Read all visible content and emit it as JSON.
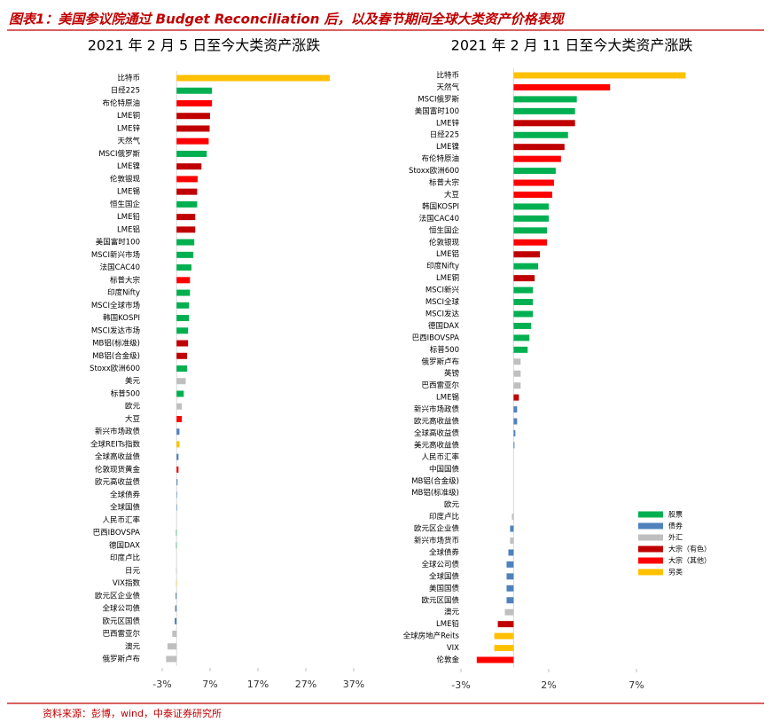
{
  "header": {
    "title": "图表1：美国参议院通过 Budget Reconciliation 后，以及春节期间全球大类资产价格表现"
  },
  "source": "资料来源：彭博，wind，中泰证券研究所",
  "legend": [
    {
      "name": "股票",
      "color": "#00b050"
    },
    {
      "name": "债券",
      "color": "#4f81bd"
    },
    {
      "name": "外汇",
      "color": "#bfbfbf"
    },
    {
      "name": "大宗（有色）",
      "color": "#c00000"
    },
    {
      "name": "大宗（其他）",
      "color": "#ff0000"
    },
    {
      "name": "另类",
      "color": "#ffc000"
    }
  ],
  "chart_data": [
    {
      "type": "barh",
      "title": "2021 年 2 月 5 日至今大类资产涨跌",
      "categories": [
        "比特币",
        "日经225",
        "布伦特原油",
        "LME铜",
        "LME锌",
        "天然气",
        "MSCI俄罗斯",
        "LME镍",
        "伦敦银现",
        "LME锡",
        "恒生国企",
        "LME铅",
        "LME铝",
        "美国富时100",
        "MSCI新兴市场",
        "法国CAC40",
        "标普大宗",
        "印度Nifty",
        "MSCI全球市场",
        "韩国KOSPI",
        "MSCI发达市场",
        "MB铝(标准级)",
        "MB铝(合金级)",
        "Stoxx欧洲600",
        "美元",
        "标普500",
        "欧元",
        "大豆",
        "新兴市场政债",
        "全球REITs指数",
        "全球高收益债",
        "伦敦现货黄金",
        "欧元高收益债",
        "全球债券",
        "全球国债",
        "人民币汇率",
        "巴西IBOVSPA",
        "德国DAX",
        "印度卢比",
        "日元",
        "VIX指数",
        "欧元区企业债",
        "全球公司债",
        "欧元区国债",
        "巴西雷亚尔",
        "澳元",
        "俄罗斯卢布"
      ],
      "values": [
        32.0,
        7.4,
        7.4,
        7.0,
        6.9,
        6.7,
        6.3,
        5.2,
        4.4,
        4.3,
        4.3,
        3.9,
        3.9,
        3.7,
        3.5,
        3.1,
        2.8,
        2.8,
        2.6,
        2.6,
        2.4,
        2.4,
        2.2,
        2.2,
        1.9,
        1.5,
        1.1,
        1.1,
        0.6,
        0.6,
        0.4,
        0.4,
        0.2,
        0.1,
        0.1,
        0,
        -0.1,
        -0.1,
        0,
        -0.1,
        -0.1,
        -0.2,
        -0.3,
        -0.4,
        -0.9,
        -1.9,
        -2.2
      ],
      "colors": [
        "#ffc000",
        "#00b050",
        "#ff0000",
        "#c00000",
        "#c00000",
        "#ff0000",
        "#00b050",
        "#c00000",
        "#ff0000",
        "#c00000",
        "#00b050",
        "#c00000",
        "#c00000",
        "#00b050",
        "#00b050",
        "#00b050",
        "#ff0000",
        "#00b050",
        "#00b050",
        "#00b050",
        "#00b050",
        "#c00000",
        "#c00000",
        "#00b050",
        "#bfbfbf",
        "#00b050",
        "#bfbfbf",
        "#ff0000",
        "#4f81bd",
        "#ffc000",
        "#4f81bd",
        "#ff0000",
        "#4f81bd",
        "#4f81bd",
        "#4f81bd",
        "#bfbfbf",
        "#00b050",
        "#00b050",
        "#bfbfbf",
        "#bfbfbf",
        "#ffc000",
        "#4f81bd",
        "#4f81bd",
        "#4f81bd",
        "#bfbfbf",
        "#bfbfbf",
        "#bfbfbf"
      ],
      "xlim": [
        -4,
        39
      ],
      "xticks": [
        {
          "value": -3,
          "label": "-3%"
        },
        {
          "value": 7,
          "label": "7%"
        },
        {
          "value": 17,
          "label": "17%"
        },
        {
          "value": 27,
          "label": "27%"
        },
        {
          "value": 37,
          "label": "37%"
        }
      ]
    },
    {
      "type": "barh",
      "title": "2021 年 2 月 11 日至今大类资产涨跌",
      "categories": [
        "比特币",
        "天然气",
        "MSCI俄罗斯",
        "美国富时100",
        "LME锌",
        "日经225",
        "LME镍",
        "布伦特原油",
        "Stoxx欧洲600",
        "标普大宗",
        "大豆",
        "韩国KOSPI",
        "法国CAC40",
        "恒生国企",
        "伦敦银现",
        "LME铝",
        "印度Nifty",
        "LME铜",
        "MSCI新兴",
        "MSCI全球",
        "MSCI发达",
        "德国DAX",
        "巴西IBOVSPA",
        "标普500",
        "俄罗斯卢布",
        "英镑",
        "巴西雷亚尔",
        "LME锡",
        "新兴市场政债",
        "欧元高收益债",
        "全球高收益债",
        "美元高收益债",
        "人民币汇率",
        "中国国债",
        "MB铝(合金级)",
        "MB铝(标准级)",
        "欧元",
        "印度卢比",
        "欧元区企业债",
        "新兴市场货币",
        "全球债券",
        "全球公司债",
        "全球国债",
        "美国国债",
        "欧元区国债",
        "澳元",
        "LME铅",
        "全球房地产Reits",
        "VIX",
        "伦敦金"
      ],
      "values": [
        9.8,
        5.5,
        3.6,
        3.5,
        3.5,
        3.1,
        2.9,
        2.7,
        2.4,
        2.3,
        2.2,
        2.0,
        2.0,
        1.9,
        1.9,
        1.5,
        1.4,
        1.2,
        1.1,
        1.1,
        1.1,
        1.0,
        0.9,
        0.8,
        0.4,
        0.4,
        0.4,
        0.3,
        0.2,
        0.2,
        0.1,
        0.05,
        0,
        0,
        0,
        0,
        0,
        -0.1,
        -0.2,
        -0.2,
        -0.3,
        -0.4,
        -0.4,
        -0.4,
        -0.4,
        -0.5,
        -0.9,
        -1.1,
        -1.1,
        -2.1
      ],
      "colors": [
        "#ffc000",
        "#ff0000",
        "#00b050",
        "#00b050",
        "#c00000",
        "#00b050",
        "#c00000",
        "#ff0000",
        "#00b050",
        "#ff0000",
        "#ff0000",
        "#00b050",
        "#00b050",
        "#00b050",
        "#ff0000",
        "#c00000",
        "#00b050",
        "#c00000",
        "#00b050",
        "#00b050",
        "#00b050",
        "#00b050",
        "#00b050",
        "#00b050",
        "#bfbfbf",
        "#bfbfbf",
        "#bfbfbf",
        "#c00000",
        "#4f81bd",
        "#4f81bd",
        "#4f81bd",
        "#4f81bd",
        "#bfbfbf",
        "#4f81bd",
        "#c00000",
        "#c00000",
        "#bfbfbf",
        "#bfbfbf",
        "#4f81bd",
        "#bfbfbf",
        "#4f81bd",
        "#4f81bd",
        "#4f81bd",
        "#4f81bd",
        "#4f81bd",
        "#bfbfbf",
        "#c00000",
        "#ffc000",
        "#ffc000",
        "#ff0000"
      ],
      "xlim": [
        -3.5,
        10.3
      ],
      "xticks": [
        {
          "value": -3,
          "label": "-3%"
        },
        {
          "value": 2,
          "label": "2%"
        },
        {
          "value": 7,
          "label": "7%"
        }
      ]
    }
  ]
}
